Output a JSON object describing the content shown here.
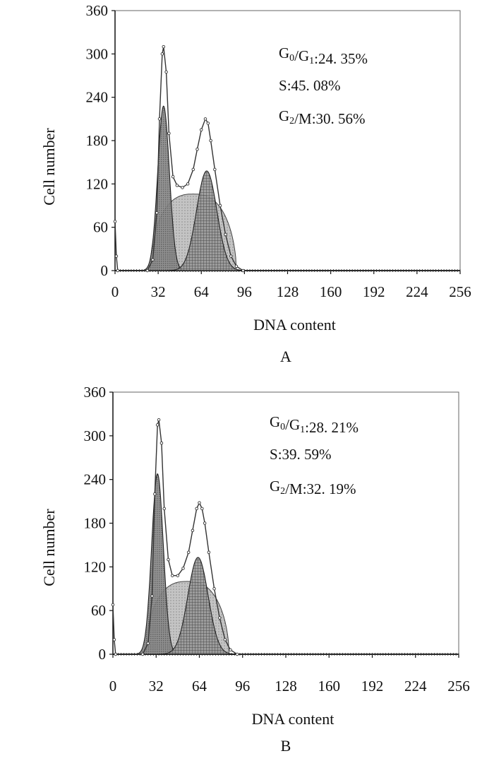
{
  "chart_data": [
    {
      "type": "area",
      "panel_label": "A",
      "xlabel": "DNA content",
      "ylabel": "Cell number",
      "xlim": [
        0,
        256
      ],
      "ylim": [
        0,
        360
      ],
      "xticks": [
        "0",
        "32",
        "64",
        "96",
        "128",
        "160",
        "192",
        "224",
        "256"
      ],
      "yticks": [
        "0",
        "60",
        "120",
        "180",
        "240",
        "300",
        "360"
      ],
      "stats": [
        {
          "label": "G",
          "sub1": "0",
          "mid": "/G",
          "sub2": "1",
          "value": ":24. 35%"
        },
        {
          "label": "S",
          "sub1": "",
          "mid": "",
          "sub2": "",
          "value": ":45. 08%"
        },
        {
          "label": "G",
          "sub1": "2",
          "mid": "/M",
          "sub2": "",
          "value": ":30. 56%"
        }
      ],
      "series": [
        {
          "name": "G0/G1",
          "type": "gaussian",
          "peak_x": 36,
          "peak_y": 228,
          "sigma": 4.3
        },
        {
          "name": "S",
          "type": "plateau",
          "x_start": 26,
          "x_end": 90,
          "top_y": 106
        },
        {
          "name": "G2/M",
          "type": "gaussian",
          "peak_x": 68,
          "peak_y": 138,
          "sigma": 7.5
        },
        {
          "name": "Total",
          "type": "envelope",
          "points": [
            [
              0,
              68
            ],
            [
              1,
              20
            ],
            [
              2,
              0
            ],
            [
              24,
              0
            ],
            [
              28,
              15
            ],
            [
              31,
              80
            ],
            [
              33,
              210
            ],
            [
              35,
              300
            ],
            [
              36,
              310
            ],
            [
              38,
              275
            ],
            [
              40,
              190
            ],
            [
              43,
              130
            ],
            [
              46,
              118
            ],
            [
              50,
              115
            ],
            [
              54,
              120
            ],
            [
              58,
              140
            ],
            [
              61,
              168
            ],
            [
              64,
              195
            ],
            [
              67,
              210
            ],
            [
              69,
              204
            ],
            [
              71,
              180
            ],
            [
              74,
              140
            ],
            [
              78,
              90
            ],
            [
              82,
              50
            ],
            [
              86,
              20
            ],
            [
              90,
              6
            ],
            [
              95,
              0
            ],
            [
              256,
              0
            ]
          ]
        }
      ]
    },
    {
      "type": "area",
      "panel_label": "B",
      "xlabel": "DNA content",
      "ylabel": "Cell number",
      "xlim": [
        0,
        256
      ],
      "ylim": [
        0,
        360
      ],
      "xticks": [
        "0",
        "32",
        "64",
        "96",
        "128",
        "160",
        "192",
        "224",
        "256"
      ],
      "yticks": [
        "0",
        "60",
        "120",
        "180",
        "240",
        "300",
        "360"
      ],
      "stats": [
        {
          "label": "G",
          "sub1": "0",
          "mid": "/G",
          "sub2": "1",
          "value": ":28. 21%"
        },
        {
          "label": "S",
          "sub1": "",
          "mid": "",
          "sub2": "",
          "value": ":39. 59%"
        },
        {
          "label": "G",
          "sub1": "2",
          "mid": "/M",
          "sub2": "",
          "value": ":32. 19%"
        }
      ],
      "series": [
        {
          "name": "G0/G1",
          "type": "gaussian",
          "peak_x": 33,
          "peak_y": 248,
          "sigma": 4.3
        },
        {
          "name": "S",
          "type": "plateau",
          "x_start": 24,
          "x_end": 86,
          "top_y": 100
        },
        {
          "name": "G2/M",
          "type": "gaussian",
          "peak_x": 63,
          "peak_y": 133,
          "sigma": 7.5
        },
        {
          "name": "Total",
          "type": "envelope",
          "points": [
            [
              0,
              68
            ],
            [
              1,
              20
            ],
            [
              2,
              0
            ],
            [
              22,
              0
            ],
            [
              26,
              15
            ],
            [
              29,
              80
            ],
            [
              31,
              220
            ],
            [
              33,
              315
            ],
            [
              34,
              322
            ],
            [
              36,
              290
            ],
            [
              38,
              200
            ],
            [
              41,
              130
            ],
            [
              44,
              108
            ],
            [
              48,
              108
            ],
            [
              52,
              118
            ],
            [
              56,
              140
            ],
            [
              59,
              170
            ],
            [
              62,
              200
            ],
            [
              64,
              208
            ],
            [
              66,
              200
            ],
            [
              68,
              180
            ],
            [
              71,
              140
            ],
            [
              75,
              90
            ],
            [
              79,
              50
            ],
            [
              83,
              20
            ],
            [
              87,
              6
            ],
            [
              92,
              0
            ],
            [
              256,
              0
            ]
          ]
        }
      ]
    }
  ]
}
